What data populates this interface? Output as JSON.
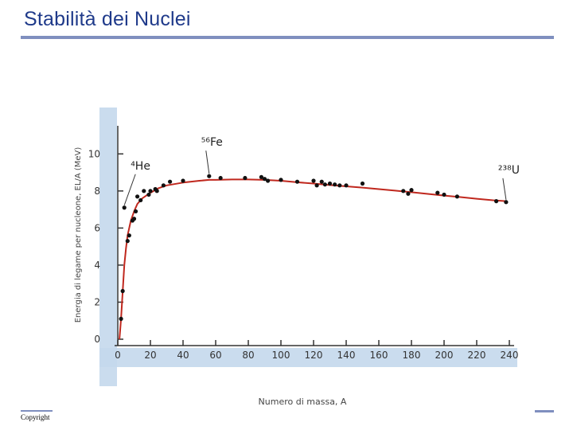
{
  "page": {
    "title": "Stabilità dei Nuclei",
    "footer": "Copyright"
  },
  "colors": {
    "title": "#1f3a8a",
    "rule": "#7f8fbf",
    "curve": "#c0281e",
    "points": "#111111",
    "axis_band": "#c4d8ec"
  },
  "chart_data": {
    "type": "line",
    "xlabel": "Numero di massa, A",
    "ylabel": "Energia di legame per nucleone, EL/A (MeV)",
    "xlim": [
      0,
      240
    ],
    "ylim": [
      0,
      11
    ],
    "xticks": [
      0,
      20,
      40,
      60,
      80,
      100,
      120,
      140,
      160,
      180,
      200,
      220,
      240
    ],
    "yticks": [
      0,
      2,
      4,
      6,
      8,
      10
    ],
    "xtick_labels": [
      "0",
      "20",
      "40",
      "60",
      "80",
      "100",
      "120",
      "140",
      "160",
      "180",
      "200",
      "220",
      "240"
    ],
    "ytick_labels": [
      "0",
      "2",
      "4",
      "6",
      "8",
      "10"
    ],
    "series": [
      {
        "kind": "curve",
        "x": [
          1,
          2,
          3,
          4,
          5,
          6,
          8,
          10,
          12,
          15,
          20,
          25,
          30,
          40,
          50,
          56,
          60,
          70,
          80,
          90,
          100,
          110,
          120,
          130,
          140,
          150,
          160,
          170,
          180,
          190,
          200,
          210,
          220,
          230,
          238
        ],
        "y": [
          0.0,
          1.1,
          2.6,
          4.0,
          4.9,
          5.6,
          6.4,
          6.9,
          7.3,
          7.6,
          7.9,
          8.15,
          8.3,
          8.45,
          8.55,
          8.6,
          8.6,
          8.62,
          8.62,
          8.6,
          8.55,
          8.47,
          8.4,
          8.32,
          8.25,
          8.18,
          8.1,
          8.02,
          7.93,
          7.84,
          7.75,
          7.67,
          7.58,
          7.5,
          7.45
        ]
      },
      {
        "kind": "points",
        "x": [
          2,
          3,
          4,
          6,
          7,
          9,
          10,
          11,
          12,
          14,
          16,
          19,
          20,
          23,
          24,
          28,
          32,
          40,
          56,
          63,
          78,
          88,
          90,
          92,
          100,
          110,
          120,
          122,
          125,
          127,
          130,
          133,
          136,
          140,
          150,
          175,
          178,
          180,
          196,
          200,
          208,
          232,
          238
        ],
        "y": [
          1.1,
          2.6,
          7.1,
          5.3,
          5.6,
          6.4,
          6.5,
          6.9,
          7.7,
          7.5,
          8.0,
          7.8,
          8.0,
          8.1,
          8.0,
          8.3,
          8.5,
          8.55,
          8.8,
          8.7,
          8.7,
          8.75,
          8.65,
          8.55,
          8.6,
          8.5,
          8.55,
          8.3,
          8.5,
          8.35,
          8.4,
          8.35,
          8.3,
          8.3,
          8.4,
          8.0,
          7.85,
          8.05,
          7.9,
          7.8,
          7.7,
          7.45,
          7.4
        ]
      }
    ],
    "annotations": [
      {
        "text": "⁴He",
        "x": 4,
        "y": 7.1
      },
      {
        "text": "⁵⁶Fe",
        "x": 56,
        "y": 8.8
      },
      {
        "text": "²³⁸U",
        "x": 238,
        "y": 7.4
      }
    ]
  }
}
